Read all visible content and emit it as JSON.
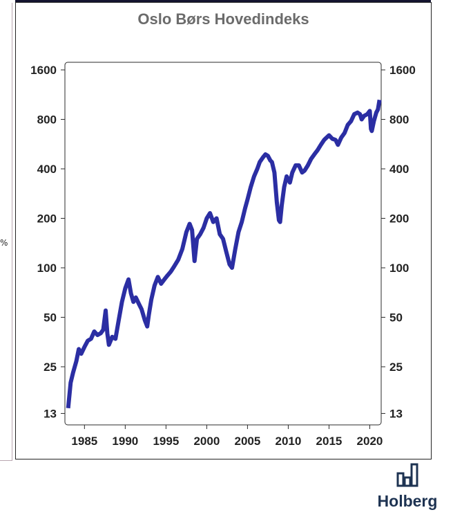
{
  "chart_data": {
    "type": "line",
    "title": "Oslo Børs Hovedindeks",
    "xlabel": "",
    "ylabel": "",
    "yscale": "log",
    "xlim": [
      1982.6,
      2021.4
    ],
    "ylim": [
      12,
      1700
    ],
    "x_ticks": [
      1985,
      1990,
      1995,
      2000,
      2005,
      2010,
      2015,
      2020
    ],
    "y_ticks": [
      13,
      25,
      50,
      100,
      200,
      400,
      800,
      1600
    ],
    "y_axis_both_sides": true,
    "grid": false,
    "legend": "none",
    "line_color": "#2b2ea3",
    "series": [
      {
        "x": [
          1983.0,
          1983.3,
          1983.6,
          1984.0,
          1984.3,
          1984.6,
          1985.0,
          1985.4,
          1985.8,
          1986.2,
          1986.6,
          1987.0,
          1987.3,
          1987.6,
          1987.8,
          1988.0,
          1988.4,
          1988.8,
          1989.2,
          1989.6,
          1990.0,
          1990.4,
          1990.7,
          1991.0,
          1991.3,
          1991.7,
          1992.0,
          1992.4,
          1992.7,
          1992.9,
          1993.2,
          1993.6,
          1994.0,
          1994.4,
          1994.8,
          1995.2,
          1995.6,
          1996.0,
          1996.5,
          1997.0,
          1997.5,
          1997.9,
          1998.2,
          1998.5,
          1998.8,
          1999.2,
          1999.6,
          2000.0,
          2000.4,
          2000.8,
          2001.2,
          2001.6,
          2002.0,
          2002.4,
          2002.8,
          2003.1,
          2003.5,
          2003.9,
          2004.3,
          2004.7,
          2005.0,
          2005.4,
          2005.8,
          2006.2,
          2006.5,
          2006.9,
          2007.2,
          2007.5,
          2007.8,
          2008.0,
          2008.3,
          2008.6,
          2008.85,
          2009.0,
          2009.2,
          2009.5,
          2009.8,
          2010.2,
          2010.5,
          2010.9,
          2011.3,
          2011.7,
          2012.0,
          2012.4,
          2012.8,
          2013.2,
          2013.6,
          2014.0,
          2014.4,
          2014.7,
          2015.0,
          2015.4,
          2015.8,
          2016.1,
          2016.5,
          2016.9,
          2017.3,
          2017.7,
          2018.1,
          2018.5,
          2018.8,
          2019.0,
          2019.3,
          2019.7,
          2020.0,
          2020.15,
          2020.25,
          2020.5,
          2020.8,
          2021.0,
          2021.2
        ],
        "values": [
          14,
          20,
          23,
          27,
          32,
          30,
          33,
          36,
          37,
          41,
          39,
          40,
          42,
          55,
          40,
          34,
          38,
          37,
          48,
          62,
          75,
          85,
          70,
          62,
          66,
          60,
          56,
          48,
          44,
          52,
          64,
          78,
          88,
          80,
          85,
          90,
          95,
          102,
          112,
          130,
          165,
          185,
          170,
          110,
          150,
          160,
          175,
          200,
          215,
          190,
          200,
          160,
          150,
          125,
          105,
          100,
          130,
          165,
          190,
          230,
          260,
          310,
          360,
          400,
          440,
          470,
          490,
          480,
          450,
          440,
          380,
          250,
          195,
          190,
          240,
          310,
          360,
          330,
          380,
          420,
          420,
          380,
          390,
          420,
          460,
          490,
          520,
          560,
          600,
          620,
          640,
          610,
          600,
          560,
          620,
          660,
          740,
          780,
          860,
          880,
          860,
          800,
          840,
          860,
          900,
          700,
          680,
          780,
          880,
          920,
          1050
        ]
      }
    ]
  },
  "brand": {
    "name": "Holberg",
    "icon": "bar-chart-logo-icon",
    "color": "#1e3352"
  },
  "left_panel": {
    "glyph": "%"
  }
}
